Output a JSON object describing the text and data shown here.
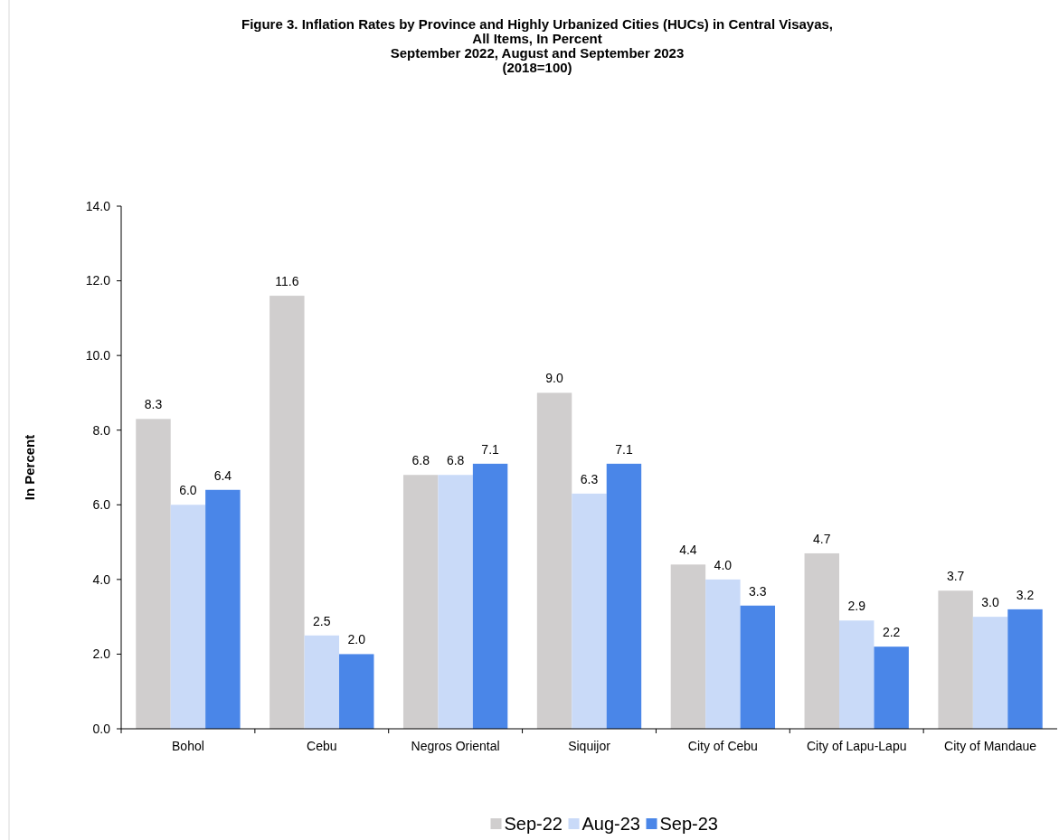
{
  "chart_data": {
    "type": "bar",
    "title": "Figure 3. Inflation Rates by Province and Highly Urbanized Cities (HUCs) in Central Visayas,\nAll Items, In Percent\nSeptember 2022, August and September 2023\n(2018=100)",
    "ylabel": "In Percent",
    "categories": [
      "Bohol",
      "Cebu",
      "Negros Oriental",
      "Siquijor",
      "City of Cebu",
      "City of Lapu-Lapu",
      "City of Mandaue"
    ],
    "series": [
      {
        "name": "Sep-22",
        "color": "#d0cece",
        "values": [
          8.3,
          11.6,
          6.8,
          9.0,
          4.4,
          4.7,
          3.7
        ],
        "value_labels": [
          "8.3",
          "11.6",
          "6.8",
          "9.0",
          "4.4",
          "4.7",
          "3.7"
        ]
      },
      {
        "name": "Aug-23",
        "color": "#c9daf8",
        "values": [
          6.0,
          2.5,
          6.8,
          6.3,
          4.0,
          2.9,
          3.0
        ],
        "value_labels": [
          "6.0",
          "2.5",
          "6.8",
          "6.3",
          "4.0",
          "2.9",
          "3.0"
        ]
      },
      {
        "name": "Sep-23",
        "color": "#4a86e8",
        "values": [
          6.4,
          2.0,
          7.1,
          7.1,
          3.3,
          2.2,
          3.2
        ],
        "value_labels": [
          "6.4",
          "2.0",
          "7.1",
          "7.1",
          "3.3",
          "2.2",
          "3.2"
        ]
      }
    ],
    "ylim": [
      0,
      14
    ],
    "yticks": [
      {
        "value": 0,
        "label": "0.0"
      },
      {
        "value": 2,
        "label": "2.0"
      },
      {
        "value": 4,
        "label": "4.0"
      },
      {
        "value": 6,
        "label": "6.0"
      },
      {
        "value": 8,
        "label": "8.0"
      },
      {
        "value": 10,
        "label": "10.0"
      },
      {
        "value": 12,
        "label": "12.0"
      },
      {
        "value": 14,
        "label": "14.0"
      }
    ],
    "grid": false,
    "legend": "bottom"
  }
}
